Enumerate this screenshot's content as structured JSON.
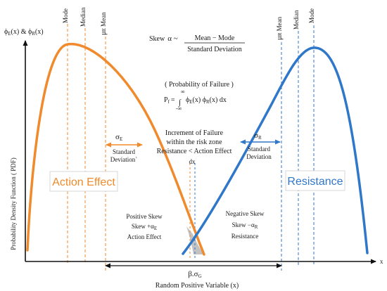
{
  "colors": {
    "action": "#f08a2c",
    "resistance": "#2f77c9",
    "axis": "#111111",
    "overlap": "#b7b7b7"
  },
  "axes": {
    "y_label": "Probability Density Function ( PDF)",
    "y_top_phi1": "ϕ",
    "y_top_sub1": "E",
    "y_top_mid": "(x) & ϕ",
    "y_top_sub2": "R",
    "y_top_end": "(x)",
    "x_label": "Random Positive Variable (x)",
    "x_end": "x"
  },
  "skew_formula": {
    "prefix": "Skew",
    "alpha": "α ~",
    "numerator": "Mean  −  Mode",
    "denominator": "Standard Deviation"
  },
  "failure_formula": {
    "heading": "( Probability  of Failure )",
    "lhs": "P",
    "lhs_sub": "f",
    "eq": "=",
    "integral": "∫",
    "upper": "∞",
    "lower": "-∞",
    "body_phi1": "ϕ",
    "body_sub1": "E",
    "body_mid": "(x)  ϕ",
    "body_sub2": "R",
    "body_end": "(x)  dx"
  },
  "action": {
    "mode": "Mode",
    "median": "Median",
    "mean_mu": "μ",
    "mean_sub": "E",
    "mean_word": "Mean",
    "sigma": "σ",
    "sigma_sub": "E",
    "std_line1": "Standard",
    "std_line2": "Deviation`",
    "box_label": "Action Effect",
    "skew_line1": "Positive Skew",
    "skew_line2a": "Skew +α",
    "skew_line2_sub": "E",
    "skew_line3": "Action Effect"
  },
  "resistance": {
    "mean_mu": "μ",
    "mean_sub": "R",
    "mean_word": "Mean",
    "median": "Median",
    "mode": "Mode",
    "sigma": "σ",
    "sigma_sub": "R",
    "std_line1": "Standard",
    "std_line2": "Deviation",
    "box_label": "Resistance",
    "skew_line1": "Negative Skew",
    "skew_line2a": "Skew −α",
    "skew_line2_sub": "R",
    "skew_line3": "Resistance"
  },
  "failure_zone": {
    "line1": "Increment of Failure",
    "line2": "within the risk zone",
    "line3": "Resistance < Action Effect",
    "dx": "dx"
  },
  "beta": {
    "text": "β.σ",
    "sub": "G"
  }
}
